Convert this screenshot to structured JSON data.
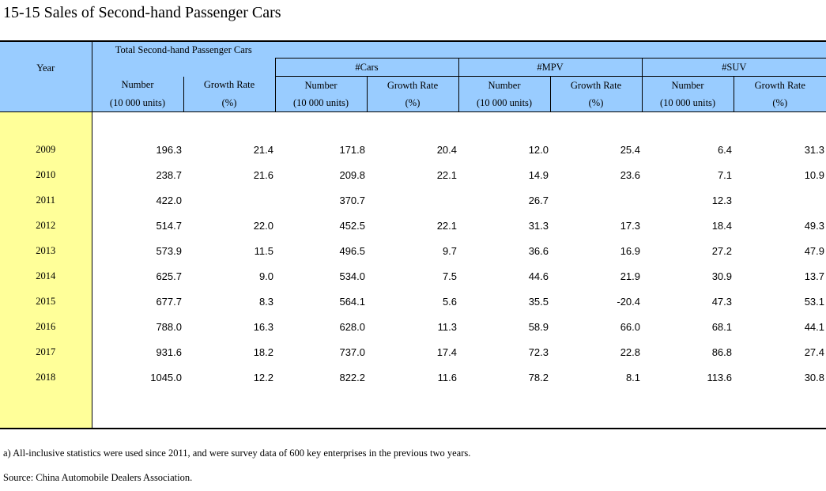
{
  "title": "15-15  Sales of Second-hand Passenger Cars",
  "header": {
    "year": "Year",
    "groups": [
      "Total Second-hand Passenger Cars",
      "#Cars",
      "#MPV",
      "#SUV"
    ],
    "number_label": "Number",
    "number_unit": "(10 000 units)",
    "growth_label": "Growth Rate",
    "growth_unit": "(%)"
  },
  "rows": [
    {
      "year": "2009",
      "v": [
        "196.3",
        "21.4",
        "171.8",
        "20.4",
        "12.0",
        "25.4",
        "6.4",
        "31.3"
      ]
    },
    {
      "year": "2010",
      "v": [
        "238.7",
        "21.6",
        "209.8",
        "22.1",
        "14.9",
        "23.6",
        "7.1",
        "10.9"
      ]
    },
    {
      "year": "2011",
      "v": [
        "422.0",
        "",
        "370.7",
        "",
        "26.7",
        "",
        "12.3",
        ""
      ]
    },
    {
      "year": "2012",
      "v": [
        "514.7",
        "22.0",
        "452.5",
        "22.1",
        "31.3",
        "17.3",
        "18.4",
        "49.3"
      ]
    },
    {
      "year": "2013",
      "v": [
        "573.9",
        "11.5",
        "496.5",
        "9.7",
        "36.6",
        "16.9",
        "27.2",
        "47.9"
      ]
    },
    {
      "year": "2014",
      "v": [
        "625.7",
        "9.0",
        "534.0",
        "7.5",
        "44.6",
        "21.9",
        "30.9",
        "13.7"
      ]
    },
    {
      "year": "2015",
      "v": [
        "677.7",
        "8.3",
        "564.1",
        "5.6",
        "35.5",
        "-20.4",
        "47.3",
        "53.1"
      ]
    },
    {
      "year": "2016",
      "v": [
        "788.0",
        "16.3",
        "628.0",
        "11.3",
        "58.9",
        "66.0",
        "68.1",
        "44.1"
      ]
    },
    {
      "year": "2017",
      "v": [
        "931.6",
        "18.2",
        "737.0",
        "17.4",
        "72.3",
        "22.8",
        "86.8",
        "27.4"
      ]
    },
    {
      "year": "2018",
      "v": [
        "1045.0",
        "12.2",
        "822.2",
        "11.6",
        "78.2",
        "8.1",
        "113.6",
        "30.8"
      ]
    }
  ],
  "footnotes": {
    "note_a": "a) All-inclusive statistics were used since 2011, and were survey data of 600 key enterprises in the previous two years.",
    "source": "Source: China Automobile Dealers Association."
  },
  "colors": {
    "header_bg": "#99ccff",
    "year_column_bg": "#ffff99"
  }
}
